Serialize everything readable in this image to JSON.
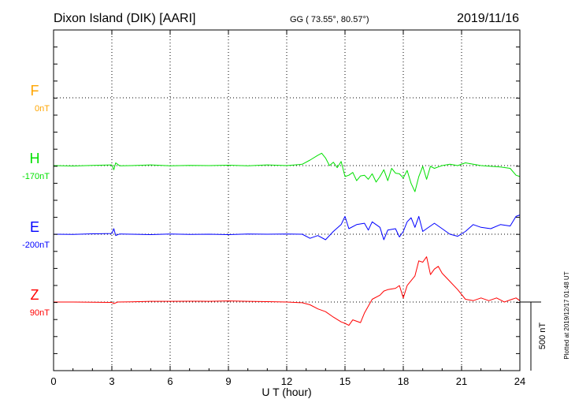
{
  "header": {
    "station": "Dixon Island (DIK)  [AARI]",
    "coords": "GG ( 73.55°,  80.57°)",
    "date": "2019/11/16"
  },
  "footer": {
    "plotted": "Plotted at 2019/12/17 01:48 UT",
    "scale": "500 nT"
  },
  "colors": {
    "F": "#ffa500",
    "H": "#00e000",
    "E": "#0000ff",
    "Z": "#ff0000",
    "axis": "#000000",
    "grid": "#000000"
  },
  "chart_data": {
    "type": "line",
    "xlabel": "U T (hour)",
    "xlim": [
      0,
      24
    ],
    "xticks": [
      0,
      3,
      6,
      9,
      12,
      15,
      18,
      21,
      24
    ],
    "scale_bar_nT": 500,
    "series": [
      {
        "name": "F",
        "baseline_label": "0nT",
        "x": [],
        "y": []
      },
      {
        "name": "H",
        "baseline_label": "-170nT",
        "x": [
          0,
          1,
          2,
          3,
          3.1,
          3.2,
          3.4,
          4,
          5,
          6,
          7,
          8,
          9,
          10,
          11,
          12,
          12.8,
          13.2,
          13.6,
          13.8,
          14.0,
          14.2,
          14.4,
          14.6,
          14.8,
          15.0,
          15.2,
          15.4,
          15.6,
          15.8,
          16.0,
          16.2,
          16.4,
          16.6,
          16.8,
          17.0,
          17.2,
          17.4,
          17.6,
          17.8,
          18.0,
          18.2,
          18.4,
          18.6,
          18.8,
          19.0,
          19.2,
          19.4,
          19.6,
          19.8,
          20.0,
          20.4,
          20.8,
          21.2,
          21.6,
          22.0,
          22.5,
          23.0,
          23.5,
          23.8,
          24.0
        ],
        "y": [
          0,
          -3,
          2,
          5,
          -30,
          20,
          -2,
          0,
          5,
          -2,
          2,
          0,
          3,
          -2,
          5,
          0,
          10,
          40,
          75,
          90,
          55,
          0,
          25,
          -15,
          30,
          -80,
          -70,
          -50,
          -110,
          -75,
          -70,
          -100,
          -60,
          -120,
          -80,
          -30,
          -110,
          -20,
          -55,
          -60,
          -90,
          -35,
          -130,
          -190,
          -80,
          -5,
          -100,
          -5,
          -20,
          -10,
          0,
          10,
          0,
          20,
          10,
          0,
          -5,
          -10,
          -20,
          -70,
          -80
        ]
      },
      {
        "name": "E",
        "baseline_label": "-200nT",
        "x": [
          0,
          1,
          2,
          3,
          3.1,
          3.2,
          3.4,
          4,
          5,
          6,
          7,
          8,
          9,
          10,
          11,
          12,
          12.8,
          13.2,
          13.6,
          14.0,
          14.4,
          14.8,
          15.0,
          15.2,
          15.6,
          16.0,
          16.2,
          16.4,
          16.8,
          17.0,
          17.2,
          17.6,
          17.8,
          18.0,
          18.2,
          18.4,
          18.6,
          18.8,
          19.0,
          19.2,
          19.6,
          20.0,
          20.4,
          20.8,
          21.2,
          21.6,
          22.0,
          22.5,
          23.0,
          23.5,
          23.8,
          24.0
        ],
        "y": [
          0,
          -2,
          3,
          5,
          40,
          -10,
          2,
          0,
          -3,
          2,
          -2,
          0,
          -3,
          2,
          0,
          2,
          0,
          -30,
          -10,
          -40,
          20,
          70,
          130,
          40,
          70,
          80,
          30,
          90,
          50,
          -40,
          30,
          40,
          -20,
          20,
          90,
          120,
          50,
          130,
          20,
          40,
          80,
          40,
          0,
          -15,
          20,
          70,
          50,
          40,
          70,
          60,
          130,
          140
        ]
      },
      {
        "name": "Z",
        "baseline_label": "90nT",
        "x": [
          0,
          1,
          2,
          3,
          3.1,
          3.3,
          4,
          5,
          6,
          7,
          8,
          9,
          10,
          11,
          12,
          12.8,
          13.2,
          13.6,
          14.0,
          14.4,
          14.8,
          15.0,
          15.2,
          15.4,
          15.6,
          15.8,
          16.0,
          16.4,
          16.8,
          17.0,
          17.2,
          17.6,
          17.8,
          18.0,
          18.2,
          18.6,
          18.8,
          19.0,
          19.2,
          19.4,
          19.6,
          19.8,
          20.0,
          20.4,
          20.8,
          21.2,
          21.6,
          22.0,
          22.4,
          22.8,
          23.2,
          23.6,
          23.8,
          24.0
        ],
        "y": [
          0,
          0,
          -2,
          -3,
          -12,
          0,
          2,
          5,
          5,
          6,
          5,
          8,
          5,
          3,
          0,
          -5,
          -20,
          -50,
          -70,
          -110,
          -145,
          -155,
          -170,
          -130,
          -140,
          -150,
          -80,
          20,
          50,
          80,
          90,
          100,
          120,
          30,
          120,
          190,
          300,
          290,
          330,
          200,
          240,
          260,
          210,
          150,
          90,
          20,
          10,
          30,
          10,
          30,
          0,
          20,
          30,
          10
        ]
      }
    ]
  }
}
